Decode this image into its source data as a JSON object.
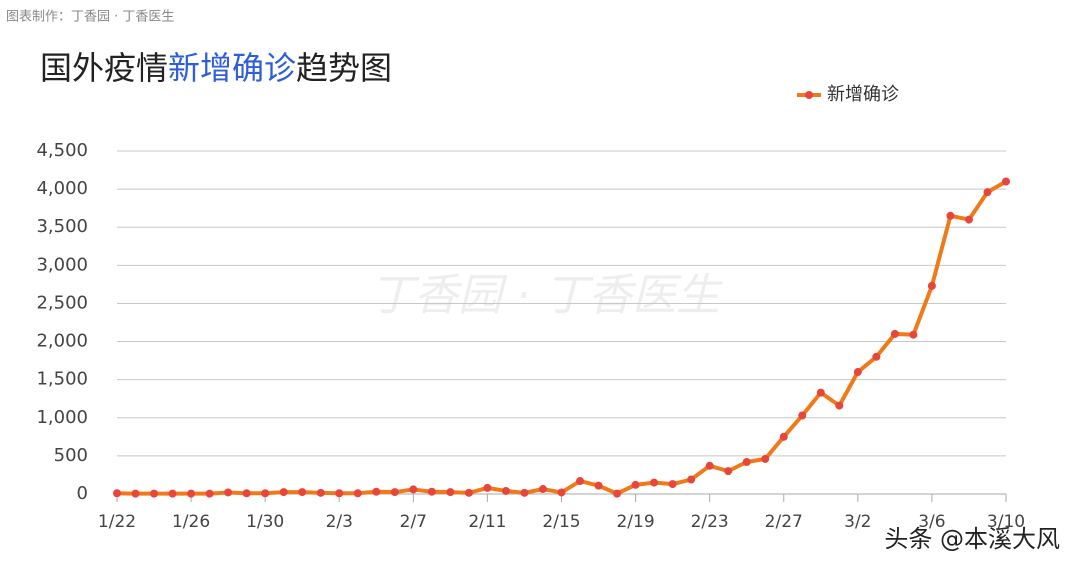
{
  "source": "图表制作：丁香园 ·  丁香医生",
  "watermark": "丁香园 · 丁香医生",
  "credit": "头条 @本溪大风",
  "chart_data": {
    "type": "line",
    "title": [
      "国外疫情",
      "新增确诊",
      "趋势图"
    ],
    "categories": [
      "1/22",
      null,
      null,
      null,
      "1/26",
      null,
      null,
      null,
      "1/30",
      null,
      null,
      null,
      "2/3",
      null,
      null,
      null,
      "2/7",
      null,
      null,
      null,
      "2/11",
      null,
      null,
      null,
      "2/15",
      null,
      null,
      null,
      "2/19",
      null,
      null,
      null,
      "2/23",
      null,
      null,
      null,
      "2/27",
      null,
      null,
      null,
      "3/2",
      null,
      null,
      null,
      "3/6",
      null,
      null,
      null,
      "3/10"
    ],
    "series": [
      {
        "name": "新增确诊",
        "color": "#f07a1a",
        "marker_color": "#e8463a",
        "values": [
          10,
          5,
          5,
          5,
          5,
          5,
          20,
          10,
          10,
          25,
          25,
          15,
          10,
          10,
          30,
          25,
          60,
          30,
          25,
          15,
          80,
          40,
          15,
          65,
          20,
          170,
          110,
          5,
          120,
          150,
          130,
          190,
          370,
          300,
          420,
          460,
          750,
          1030,
          1330,
          1160,
          1600,
          1800,
          2100,
          2090,
          2730,
          3650,
          3600,
          3960,
          4100
        ]
      }
    ],
    "ylim": [
      0,
      4500
    ],
    "yticks": [
      0,
      500,
      {
        "value": 1000,
        "label": "1,000"
      },
      {
        "value": 1500,
        "label": "1,500"
      },
      {
        "value": 2000,
        "label": "2,000"
      },
      {
        "value": 2500,
        "label": "2,500"
      },
      {
        "value": 3000,
        "label": "3,000"
      },
      {
        "value": 3500,
        "label": "3,500"
      },
      {
        "value": 4000,
        "label": "4,000"
      },
      {
        "value": 4500,
        "label": "4,500"
      }
    ],
    "grid": true,
    "legend": "top-right"
  }
}
